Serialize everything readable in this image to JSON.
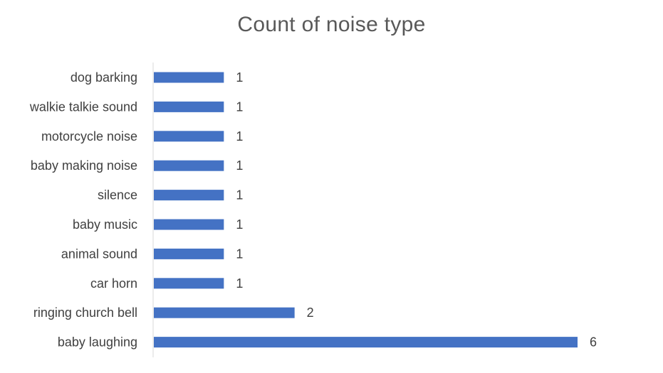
{
  "chart_data": {
    "type": "bar",
    "orientation": "horizontal",
    "title": "Count of noise type",
    "categories": [
      "dog barking",
      "walkie talkie sound",
      "motorcycle noise",
      "baby making noise ",
      "silence",
      "baby music",
      "animal sound",
      "car horn",
      "ringing church bell",
      "baby laughing"
    ],
    "values": [
      1,
      1,
      1,
      1,
      1,
      1,
      1,
      1,
      2,
      6
    ],
    "data_labels": true,
    "xlim": [
      0,
      6
    ],
    "grid": false,
    "legend": "none",
    "bar_color": "#4472C4",
    "text_color": "#404040",
    "axis_color": "#d9d9d9"
  }
}
